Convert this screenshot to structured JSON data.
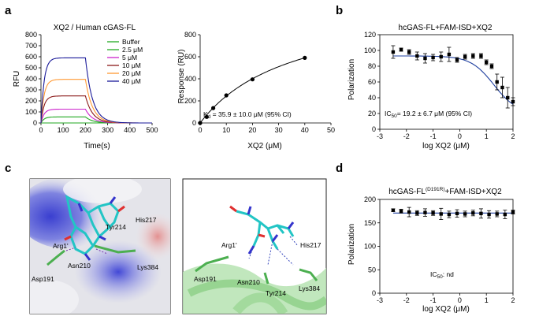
{
  "panels": {
    "a": "a",
    "b": "b",
    "c": "c",
    "d": "d"
  },
  "chart_data": [
    {
      "id": "spr",
      "type": "line",
      "title": "XQ2 / Human cGAS-FL",
      "xlabel": "Time(s)",
      "ylabel": "RFU",
      "xlim": [
        0,
        500
      ],
      "ylim": [
        0,
        800
      ],
      "xticks": [
        "0",
        "100",
        "200",
        "300",
        "400",
        "500"
      ],
      "yticks": [
        "0",
        "100",
        "200",
        "300",
        "400",
        "500",
        "600",
        "700",
        "800"
      ],
      "series": [
        {
          "name": "Buffer",
          "plateau": 0,
          "color": "#22aa22"
        },
        {
          "name": "2.5 μM",
          "plateau": 55,
          "color": "#22aa22"
        },
        {
          "name": "5 μM",
          "plateau": 125,
          "color": "#cc22cc"
        },
        {
          "name": "10 μM",
          "plateau": 245,
          "color": "#8b1a1a"
        },
        {
          "name": "20 μM",
          "plateau": 395,
          "color": "#ff9933"
        },
        {
          "name": "40 μM",
          "plateau": 590,
          "color": "#1a1a99"
        }
      ]
    },
    {
      "id": "kd",
      "type": "scatter",
      "title": "",
      "xlabel": "XQ2 (μM)",
      "ylabel": "Response (RU)",
      "xlim": [
        0,
        50
      ],
      "ylim": [
        0,
        800
      ],
      "xticks": [
        "0",
        "10",
        "20",
        "30",
        "40",
        "50"
      ],
      "yticks": [
        "0",
        "200",
        "400",
        "600",
        "800"
      ],
      "x": [
        0,
        2.5,
        5,
        10,
        20,
        40
      ],
      "y": [
        0,
        55,
        135,
        250,
        395,
        590
      ],
      "fit": {
        "kd": 35.9,
        "bmax": 1120
      },
      "annotation": {
        "k": "K",
        "sub": "d",
        "text": " = 35.9  ± 10.0 μM (95% CI)"
      }
    },
    {
      "id": "fp-wt",
      "type": "scatter",
      "title": "hcGAS-FL+FAM-ISD+XQ2",
      "xlabel": "log XQ2 (μM)",
      "ylabel": "Polarization",
      "xlim": [
        -3,
        2
      ],
      "ylim": [
        0,
        120
      ],
      "xticks": [
        "-3",
        "-2",
        "-1",
        "0",
        "1",
        "2"
      ],
      "yticks": [
        "0",
        "20",
        "40",
        "60",
        "80",
        "100",
        "120"
      ],
      "x": [
        -2.5,
        -2.2,
        -1.9,
        -1.6,
        -1.3,
        -1.0,
        -0.7,
        -0.4,
        -0.1,
        0.2,
        0.5,
        0.8,
        1.0,
        1.2,
        1.4,
        1.6,
        1.8,
        2.0
      ],
      "y": [
        98,
        101,
        98,
        93,
        90,
        91,
        92,
        95,
        88,
        92,
        93,
        93,
        85,
        80,
        60,
        53,
        40,
        35
      ],
      "err": [
        8,
        2,
        3,
        5,
        6,
        4,
        6,
        9,
        3,
        3,
        3,
        3,
        3,
        3,
        10,
        13,
        13,
        5
      ],
      "fit": {
        "top": 93,
        "bottom": 20,
        "logic50": 1.28,
        "hill": 1.0
      },
      "annotation": {
        "k": "IC",
        "sub": "50",
        "text": "= 19.2  ± 6.7 μM (95% CI)"
      }
    },
    {
      "id": "fp-mut",
      "type": "scatter",
      "title": "hcGAS-FL",
      "title_sup": "(D191R)",
      "title_rest": "+FAM-ISD+XQ2",
      "xlabel": "log XQ2 (μM)",
      "ylabel": "Polarization",
      "xlim": [
        -3,
        2
      ],
      "ylim": [
        0,
        200
      ],
      "xticks": [
        "-3",
        "-2",
        "-1",
        "0",
        "1",
        "2"
      ],
      "yticks": [
        "0",
        "50",
        "100",
        "150",
        "200"
      ],
      "x": [
        -2.5,
        -2.2,
        -1.9,
        -1.6,
        -1.3,
        -1.0,
        -0.7,
        -0.4,
        -0.1,
        0.2,
        0.5,
        0.8,
        1.1,
        1.4,
        1.7,
        2.0
      ],
      "y": [
        177,
        175,
        173,
        171,
        172,
        171,
        169,
        168,
        170,
        169,
        171,
        170,
        168,
        169,
        168,
        173
      ],
      "err": [
        3,
        4,
        10,
        5,
        8,
        5,
        12,
        7,
        8,
        6,
        6,
        10,
        8,
        6,
        9,
        4
      ],
      "fit": {
        "flat": 171
      },
      "annotation": {
        "k": "IC",
        "sub": "50",
        "text": ": nd"
      }
    }
  ],
  "structure": {
    "left_labels": [
      "His217",
      "Tyr214",
      "Arg1'",
      "Asn210",
      "Lys384",
      "Asp191"
    ],
    "right_labels": [
      "Arg1'",
      "His217",
      "Asp191",
      "Asn210",
      "Tyr214",
      "Lys384"
    ]
  }
}
